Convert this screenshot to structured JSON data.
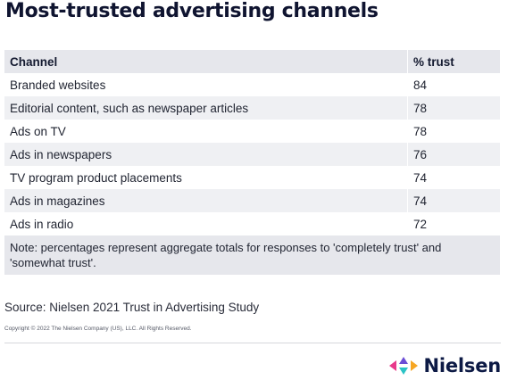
{
  "title": "Most-trusted advertising channels",
  "table": {
    "headers": {
      "channel": "Channel",
      "trust": "% trust"
    },
    "rows": [
      {
        "channel": "Branded websites",
        "trust": "84"
      },
      {
        "channel": "Editorial content, such as newspaper articles",
        "trust": "78"
      },
      {
        "channel": "Ads on TV",
        "trust": "78"
      },
      {
        "channel": "Ads in newspapers",
        "trust": "76"
      },
      {
        "channel": "TV program product placements",
        "trust": "74"
      },
      {
        "channel": "Ads in magazines",
        "trust": "74"
      },
      {
        "channel": "Ads in radio",
        "trust": "72"
      }
    ],
    "note": "Note: percentages represent aggregate totals for responses to 'completely trust' and 'somewhat trust'."
  },
  "source": "Source: Nielsen 2021 Trust in Advertising Study",
  "copyright": "Copyright © 2022 The Nielsen Company (US), LLC. All Rights Reserved.",
  "logo": {
    "wordmark": "Nielsen",
    "icon": "nielsen-logo-icon",
    "colors": {
      "left": "#e8398b",
      "right": "#f6a623",
      "top": "#6b4dd6",
      "bottom": "#2bc3c6",
      "text": "#0d1a45"
    }
  }
}
